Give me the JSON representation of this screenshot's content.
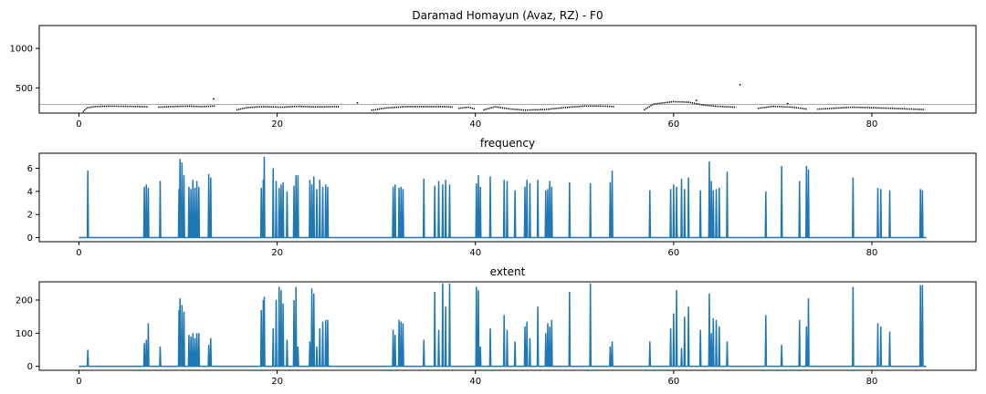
{
  "chart_data": [
    {
      "type": "scatter",
      "title": "Daramad Homayun (Avaz, RZ) - F0",
      "xlabel": "",
      "ylabel": "",
      "xlim": [
        -4,
        90.5
      ],
      "ylim": [
        180,
        1290
      ],
      "x_ticks": [
        0,
        20,
        40,
        60,
        80
      ],
      "y_ticks": [
        500,
        1000
      ],
      "reference_line": 290,
      "reference_line_color": "#aaaaaa",
      "color": "#000000",
      "voiced_segments": [
        {
          "x": [
            0.4,
            0.8,
            1.5,
            3,
            5,
            7
          ],
          "y": [
            195,
            245,
            262,
            268,
            265,
            260
          ]
        },
        {
          "x": [
            8,
            9.5,
            11,
            12.5,
            13.8
          ],
          "y": [
            255,
            263,
            268,
            262,
            270
          ]
        },
        {
          "x": [
            15.9,
            17,
            18.5,
            20.5,
            22,
            24,
            26.3
          ],
          "y": [
            220,
            250,
            262,
            255,
            265,
            258,
            262
          ]
        },
        {
          "x": [
            29.5,
            31,
            33,
            35,
            37,
            37.8
          ],
          "y": [
            215,
            245,
            262,
            262,
            262,
            255
          ]
        },
        {
          "x": [
            38.3,
            39.3,
            40
          ],
          "y": [
            240,
            255,
            230
          ]
        },
        {
          "x": [
            40.8,
            42,
            43.5,
            45,
            47,
            49,
            51,
            53,
            54
          ],
          "y": [
            220,
            260,
            232,
            218,
            225,
            250,
            270,
            268,
            262
          ]
        },
        {
          "x": [
            57,
            58,
            60,
            61.5,
            63,
            64.5,
            66.3
          ],
          "y": [
            220,
            295,
            325,
            318,
            282,
            265,
            255
          ]
        },
        {
          "x": [
            68.5,
            70,
            72,
            73.5
          ],
          "y": [
            240,
            265,
            255,
            230
          ]
        },
        {
          "x": [
            74.5,
            76,
            78,
            80,
            82,
            85.3
          ],
          "y": [
            230,
            240,
            255,
            248,
            240,
            225
          ]
        }
      ],
      "outliers": [
        {
          "x": 13.6,
          "y": 360
        },
        {
          "x": 28.1,
          "y": 310
        },
        {
          "x": 66.7,
          "y": 540
        },
        {
          "x": 62.3,
          "y": 340
        },
        {
          "x": 71.5,
          "y": 300
        }
      ]
    },
    {
      "type": "line",
      "title": "frequency",
      "xlabel": "",
      "ylabel": "",
      "xlim": [
        -4,
        90.5
      ],
      "ylim": [
        -0.35,
        7.3
      ],
      "x_ticks": [
        0,
        20,
        40,
        60,
        80
      ],
      "y_ticks": [
        0,
        2,
        4,
        6
      ],
      "x_end": 85.5,
      "color": "#1f77b4",
      "spikes": [
        [
          0.9,
          5.8
        ],
        [
          6.6,
          4.4
        ],
        [
          6.8,
          4.6
        ],
        [
          7.0,
          4.3
        ],
        [
          8.2,
          4.9
        ],
        [
          10.1,
          4.2
        ],
        [
          10.2,
          6.8
        ],
        [
          10.4,
          6.5
        ],
        [
          10.6,
          5.4
        ],
        [
          11.1,
          4.4
        ],
        [
          11.3,
          4.2
        ],
        [
          11.5,
          5.0
        ],
        [
          11.7,
          4.3
        ],
        [
          11.9,
          4.9
        ],
        [
          12.1,
          4.4
        ],
        [
          13.1,
          5.5
        ],
        [
          13.3,
          5.2
        ],
        [
          18.4,
          4.3
        ],
        [
          18.6,
          5.0
        ],
        [
          18.7,
          7.0
        ],
        [
          19.6,
          6.0
        ],
        [
          19.9,
          4.9
        ],
        [
          20.2,
          4.3
        ],
        [
          20.4,
          4.6
        ],
        [
          20.6,
          4.8
        ],
        [
          21.0,
          4.0
        ],
        [
          21.7,
          4.5
        ],
        [
          21.9,
          5.4
        ],
        [
          22.1,
          5.4
        ],
        [
          23.3,
          5.0
        ],
        [
          23.5,
          4.6
        ],
        [
          23.7,
          5.3
        ],
        [
          24.0,
          4.2
        ],
        [
          24.3,
          5.0
        ],
        [
          24.6,
          4.4
        ],
        [
          24.9,
          4.6
        ],
        [
          25.1,
          4.4
        ],
        [
          31.7,
          4.4
        ],
        [
          31.9,
          4.6
        ],
        [
          32.3,
          4.3
        ],
        [
          32.5,
          4.4
        ],
        [
          32.7,
          4.2
        ],
        [
          34.8,
          5.1
        ],
        [
          35.9,
          4.5
        ],
        [
          36.3,
          4.9
        ],
        [
          36.7,
          4.6
        ],
        [
          37.0,
          5.0
        ],
        [
          37.4,
          4.6
        ],
        [
          40.1,
          4.7
        ],
        [
          40.3,
          5.4
        ],
        [
          40.5,
          4.4
        ],
        [
          41.5,
          5.3
        ],
        [
          42.9,
          5.0
        ],
        [
          43.2,
          4.9
        ],
        [
          44.0,
          4.1
        ],
        [
          45.0,
          4.4
        ],
        [
          45.2,
          5.0
        ],
        [
          45.5,
          4.7
        ],
        [
          46.3,
          5.0
        ],
        [
          47.1,
          4.1
        ],
        [
          47.3,
          4.2
        ],
        [
          47.5,
          4.9
        ],
        [
          47.7,
          4.4
        ],
        [
          49.5,
          4.8
        ],
        [
          51.6,
          4.7
        ],
        [
          53.6,
          4.8
        ],
        [
          53.8,
          5.8
        ],
        [
          57.6,
          4.1
        ],
        [
          59.7,
          4.2
        ],
        [
          60.0,
          4.6
        ],
        [
          60.3,
          4.4
        ],
        [
          60.8,
          5.1
        ],
        [
          61.1,
          4.2
        ],
        [
          61.5,
          5.2
        ],
        [
          62.7,
          4.1
        ],
        [
          63.6,
          6.6
        ],
        [
          63.8,
          4.9
        ],
        [
          64.0,
          4.1
        ],
        [
          64.3,
          4.2
        ],
        [
          64.6,
          4.3
        ],
        [
          65.4,
          5.7
        ],
        [
          69.3,
          4.0
        ],
        [
          70.9,
          6.2
        ],
        [
          72.7,
          4.9
        ],
        [
          73.4,
          6.2
        ],
        [
          73.6,
          5.9
        ],
        [
          78.1,
          5.2
        ],
        [
          80.6,
          4.3
        ],
        [
          80.9,
          4.2
        ],
        [
          81.8,
          4.1
        ],
        [
          84.9,
          4.2
        ],
        [
          85.1,
          4.1
        ]
      ]
    },
    {
      "type": "line",
      "title": "extent",
      "xlabel": "",
      "ylabel": "",
      "xlim": [
        -4,
        90.5
      ],
      "ylim": [
        -12,
        255
      ],
      "x_ticks": [
        0,
        20,
        40,
        60,
        80
      ],
      "y_ticks": [
        0,
        100,
        200
      ],
      "x_end": 85.5,
      "color": "#1f77b4",
      "spikes": [
        [
          0.9,
          50
        ],
        [
          6.6,
          70
        ],
        [
          6.8,
          80
        ],
        [
          7.0,
          130
        ],
        [
          8.2,
          60
        ],
        [
          10.1,
          170
        ],
        [
          10.2,
          205
        ],
        [
          10.4,
          185
        ],
        [
          10.6,
          165
        ],
        [
          11.1,
          95
        ],
        [
          11.3,
          90
        ],
        [
          11.5,
          100
        ],
        [
          11.7,
          85
        ],
        [
          11.9,
          100
        ],
        [
          12.1,
          100
        ],
        [
          13.1,
          65
        ],
        [
          13.3,
          85
        ],
        [
          18.4,
          170
        ],
        [
          18.6,
          200
        ],
        [
          18.7,
          210
        ],
        [
          19.6,
          115
        ],
        [
          19.9,
          200
        ],
        [
          20.2,
          240
        ],
        [
          20.4,
          230
        ],
        [
          20.6,
          190
        ],
        [
          21.0,
          80
        ],
        [
          21.7,
          200
        ],
        [
          21.9,
          240
        ],
        [
          22.1,
          60
        ],
        [
          23.3,
          75
        ],
        [
          23.5,
          235
        ],
        [
          23.7,
          220
        ],
        [
          24.0,
          60
        ],
        [
          24.3,
          115
        ],
        [
          24.6,
          135
        ],
        [
          24.9,
          140
        ],
        [
          25.1,
          140
        ],
        [
          31.7,
          110
        ],
        [
          31.9,
          95
        ],
        [
          32.3,
          140
        ],
        [
          32.5,
          135
        ],
        [
          32.7,
          130
        ],
        [
          34.8,
          80
        ],
        [
          35.9,
          225
        ],
        [
          36.3,
          110
        ],
        [
          36.7,
          250
        ],
        [
          37.0,
          180
        ],
        [
          37.4,
          250
        ],
        [
          40.1,
          240
        ],
        [
          40.3,
          230
        ],
        [
          40.5,
          60
        ],
        [
          41.5,
          115
        ],
        [
          42.9,
          155
        ],
        [
          43.2,
          110
        ],
        [
          44.0,
          75
        ],
        [
          45.0,
          120
        ],
        [
          45.2,
          135
        ],
        [
          45.5,
          85
        ],
        [
          46.3,
          180
        ],
        [
          47.1,
          100
        ],
        [
          47.3,
          130
        ],
        [
          47.5,
          120
        ],
        [
          47.7,
          140
        ],
        [
          49.5,
          225
        ],
        [
          51.6,
          250
        ],
        [
          53.6,
          60
        ],
        [
          53.8,
          75
        ],
        [
          57.6,
          75
        ],
        [
          59.7,
          115
        ],
        [
          60.0,
          160
        ],
        [
          60.3,
          230
        ],
        [
          60.8,
          55
        ],
        [
          61.1,
          150
        ],
        [
          61.5,
          180
        ],
        [
          62.7,
          110
        ],
        [
          63.6,
          220
        ],
        [
          63.8,
          100
        ],
        [
          64.0,
          145
        ],
        [
          64.3,
          140
        ],
        [
          64.6,
          120
        ],
        [
          65.4,
          75
        ],
        [
          69.3,
          155
        ],
        [
          70.9,
          65
        ],
        [
          72.7,
          140
        ],
        [
          73.4,
          120
        ],
        [
          73.6,
          205
        ],
        [
          78.1,
          240
        ],
        [
          80.6,
          130
        ],
        [
          80.9,
          120
        ],
        [
          81.8,
          105
        ],
        [
          84.9,
          245
        ],
        [
          85.1,
          245
        ]
      ]
    }
  ]
}
